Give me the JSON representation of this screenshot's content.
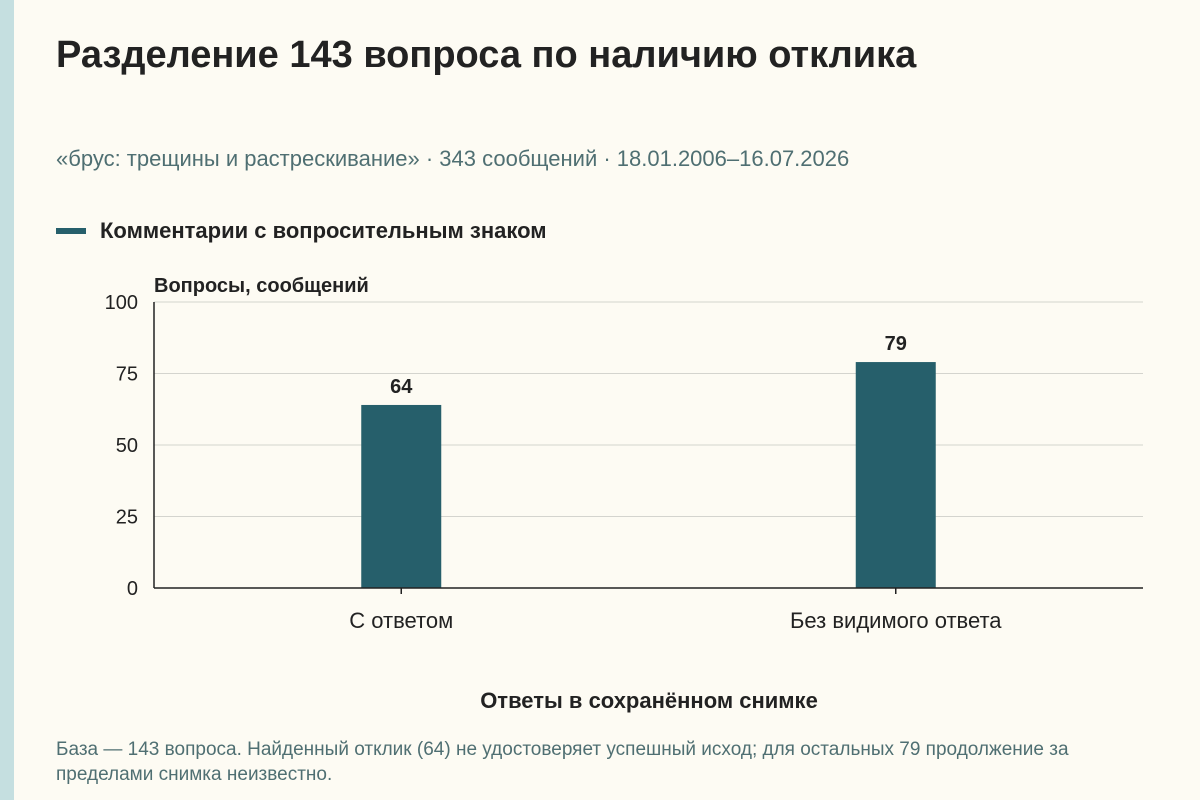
{
  "title": "Разделение 143 вопроса по наличию отклика",
  "subtitle": "«брус: трещины и растрескивание» · 343 сообщений · 18.01.2006–16.07.2026",
  "footnote": "База — 143 вопроса. Найденный отклик (64) не удостоверяет успешный исход; для остальных 79 продолжение за пределами снимка неизвестно.",
  "colors": {
    "bar": "#265f6b",
    "accent": "#c5dfe0",
    "subtitle": "#4f6f72"
  },
  "chart_data": {
    "type": "bar",
    "categories": [
      "С ответом",
      "Без видимого ответа"
    ],
    "series": [
      {
        "name": "Комментарии с вопросительным знаком",
        "values": [
          64,
          79
        ]
      }
    ],
    "xlabel": "Ответы в сохранённом снимке",
    "ylabel": "Вопросы, сообщений",
    "ylim": [
      0,
      100
    ],
    "yticks": [
      0,
      25,
      50,
      75,
      100
    ],
    "grid": true,
    "legend": "top-left",
    "data_labels": true
  }
}
